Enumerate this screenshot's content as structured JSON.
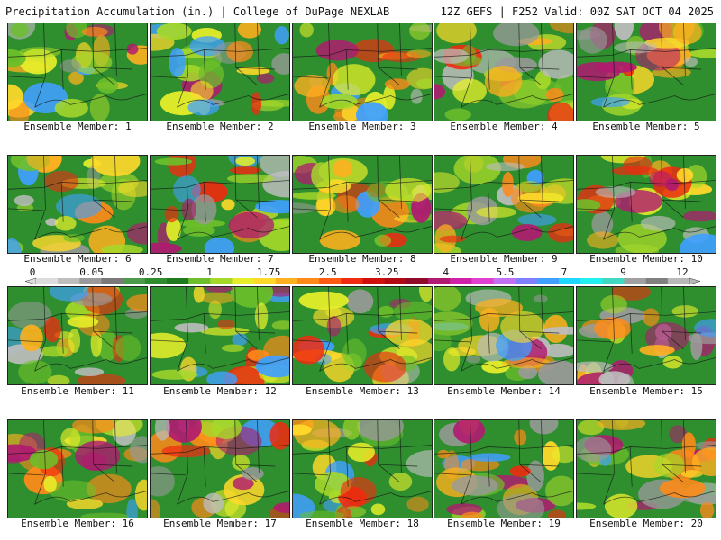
{
  "header": {
    "title_left": "Precipitation Accumulation (in.) | College of DuPage NEXLAB",
    "title_right": "12Z GEFS | F252 Valid: 00Z SAT OCT 04 2025"
  },
  "colors": {
    "background_green": "#2f8f2f",
    "border": "#222222"
  },
  "legend": {
    "labels": [
      "0",
      "0.05",
      "0.25",
      "1",
      "1.75",
      "2.5",
      "3.25",
      "4",
      "5.5",
      "7",
      "9",
      "12"
    ],
    "bins": [
      "#dcdcdc",
      "#bdbdbd",
      "#9a9a9a",
      "#7a7a7a",
      "#4c9a4c",
      "#2e8b2e",
      "#1f7a1f",
      "#6cbf2a",
      "#a6d82a",
      "#e6ee2a",
      "#ffd92a",
      "#ffb01f",
      "#ff8a1a",
      "#ff5a14",
      "#f02a10",
      "#d0100c",
      "#b00a14",
      "#900a2a",
      "#b01a70",
      "#d020a8",
      "#e040d0",
      "#c070f0",
      "#8080ff",
      "#40a0ff",
      "#20d8ff",
      "#20f0f0",
      "#40d8c0",
      "#a0a0a0",
      "#808080",
      "#b8b8b8"
    ]
  },
  "members": [
    {
      "label": "Ensemble Member: 1"
    },
    {
      "label": "Ensemble Member: 2"
    },
    {
      "label": "Ensemble Member: 3"
    },
    {
      "label": "Ensemble Member: 4"
    },
    {
      "label": "Ensemble Member: 5"
    },
    {
      "label": "Ensemble Member: 6"
    },
    {
      "label": "Ensemble Member: 7"
    },
    {
      "label": "Ensemble Member: 8"
    },
    {
      "label": "Ensemble Member: 9"
    },
    {
      "label": "Ensemble Member: 10"
    },
    {
      "label": "Ensemble Member: 11"
    },
    {
      "label": "Ensemble Member: 12"
    },
    {
      "label": "Ensemble Member: 13"
    },
    {
      "label": "Ensemble Member: 14"
    },
    {
      "label": "Ensemble Member: 15"
    },
    {
      "label": "Ensemble Member: 16"
    },
    {
      "label": "Ensemble Member: 17"
    },
    {
      "label": "Ensemble Member: 18"
    },
    {
      "label": "Ensemble Member: 19"
    },
    {
      "label": "Ensemble Member: 20"
    }
  ]
}
